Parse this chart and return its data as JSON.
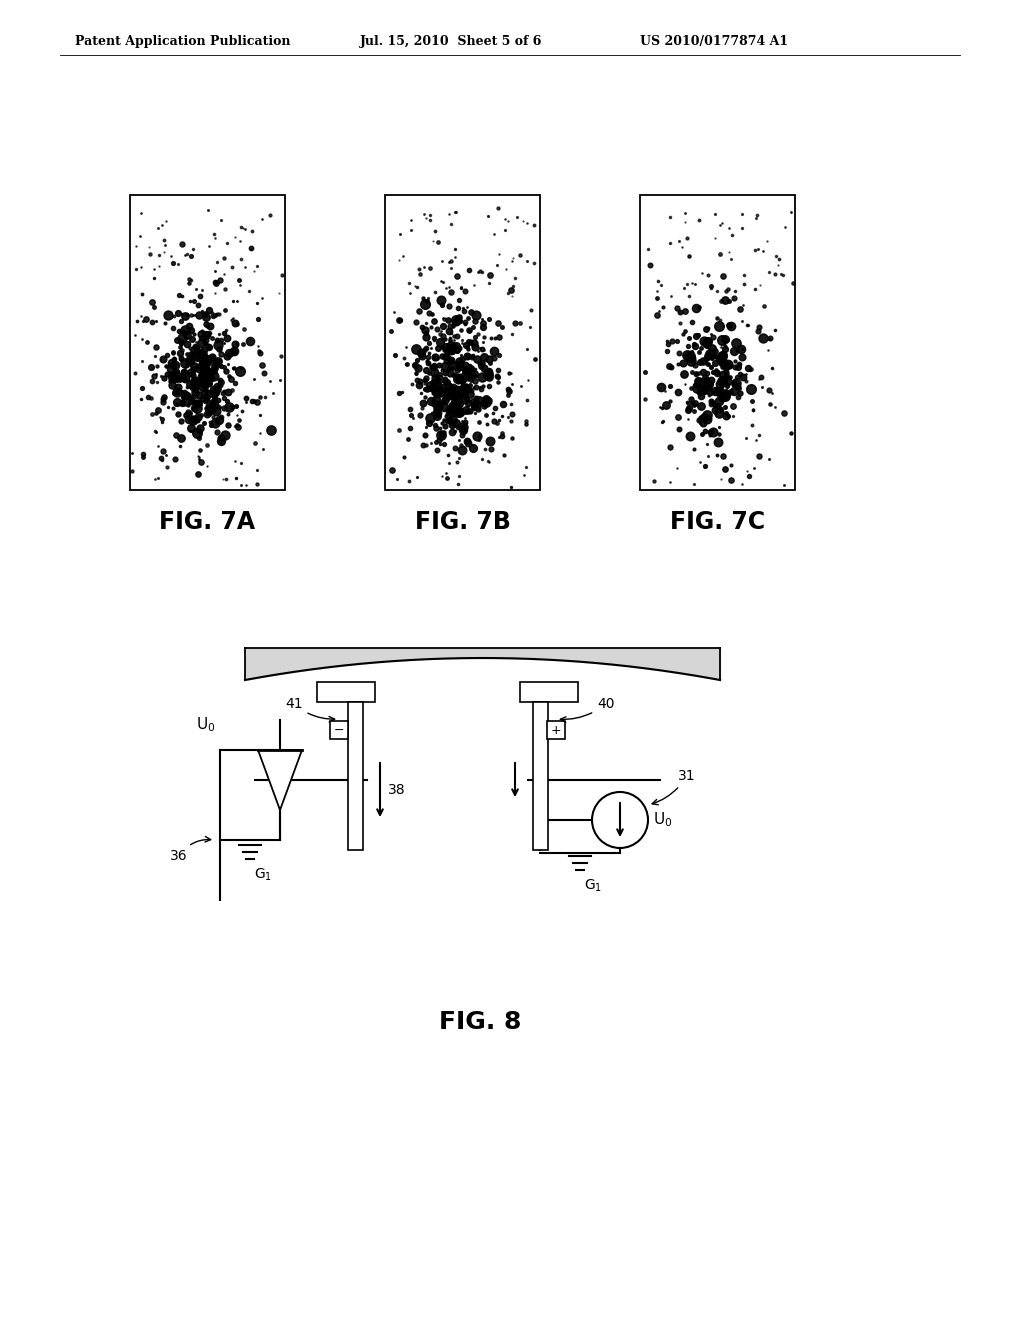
{
  "header_left": "Patent Application Publication",
  "header_mid": "Jul. 15, 2010  Sheet 5 of 6",
  "header_right": "US 2010/0177874 A1",
  "fig7a_label": "FIG. 7A",
  "fig7b_label": "FIG. 7B",
  "fig7c_label": "FIG. 7C",
  "fig8_label": "FIG. 8",
  "bg_color": "#ffffff",
  "text_color": "#000000"
}
